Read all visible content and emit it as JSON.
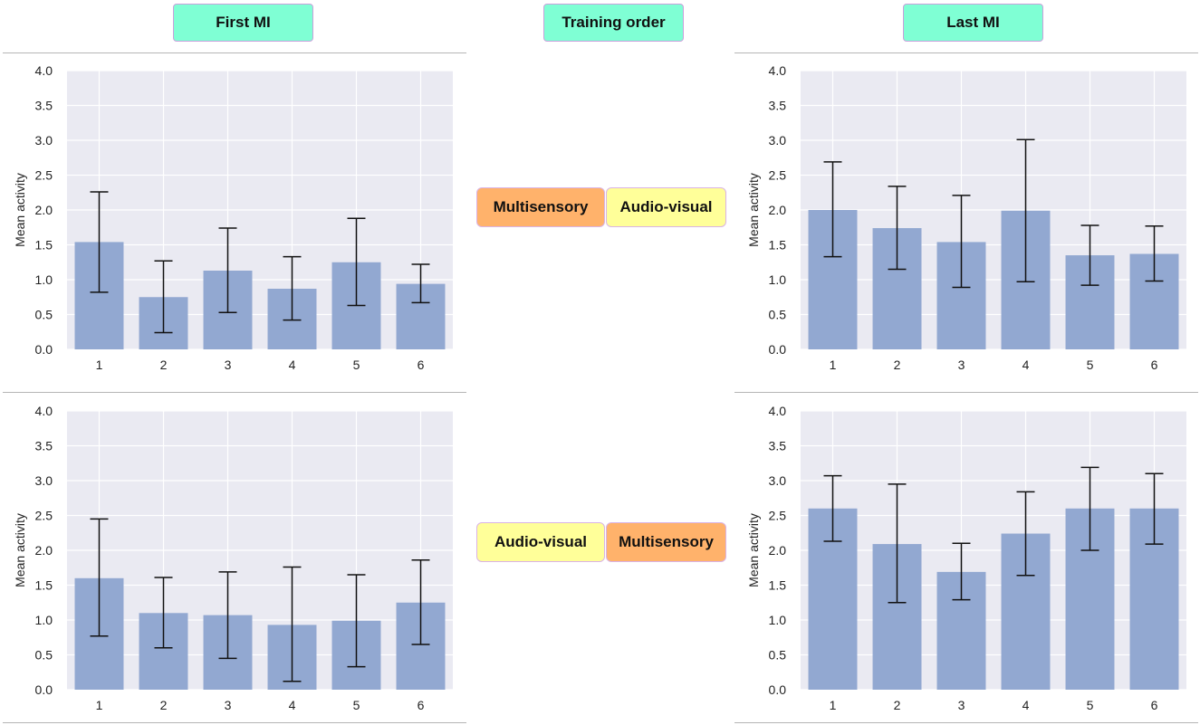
{
  "headers": {
    "left": "First MI",
    "middle": "Training order",
    "right": "Last MI"
  },
  "order_tags": {
    "top": [
      {
        "label": "Multisensory",
        "color": "#ffb26b"
      },
      {
        "label": "Audio-visual",
        "color": "#ffff99"
      }
    ],
    "bottom": [
      {
        "label": "Audio-visual",
        "color": "#ffff99"
      },
      {
        "label": "Multisensory",
        "color": "#ffb26b"
      }
    ]
  },
  "header_color": "#7fffd4",
  "bar_color": "#92a8d1",
  "plot_background": "#eaeaf2",
  "chart_data": [
    {
      "id": "first-mi-top",
      "type": "bar",
      "title": "",
      "xlabel": "",
      "ylabel": "Mean activity",
      "categories": [
        "1",
        "2",
        "3",
        "4",
        "5",
        "6"
      ],
      "values": [
        1.54,
        0.75,
        1.13,
        0.87,
        1.25,
        0.94
      ],
      "error_low": [
        0.82,
        0.24,
        0.53,
        0.42,
        0.63,
        0.67
      ],
      "error_high": [
        2.26,
        1.27,
        1.74,
        1.33,
        1.88,
        1.22
      ],
      "ylim": [
        0,
        4
      ],
      "yticks": [
        "0.0",
        "0.5",
        "1.0",
        "1.5",
        "2.0",
        "2.5",
        "3.0",
        "3.5",
        "4.0"
      ],
      "grid": true
    },
    {
      "id": "last-mi-top",
      "type": "bar",
      "title": "",
      "xlabel": "",
      "ylabel": "Mean activity",
      "categories": [
        "1",
        "2",
        "3",
        "4",
        "5",
        "6"
      ],
      "values": [
        2.0,
        1.74,
        1.54,
        1.99,
        1.35,
        1.37
      ],
      "error_low": [
        1.33,
        1.15,
        0.89,
        0.97,
        0.92,
        0.98
      ],
      "error_high": [
        2.69,
        2.34,
        2.21,
        3.01,
        1.78,
        1.77
      ],
      "ylim": [
        0,
        4
      ],
      "yticks": [
        "0.0",
        "0.5",
        "1.0",
        "1.5",
        "2.0",
        "2.5",
        "3.0",
        "3.5",
        "4.0"
      ],
      "grid": true
    },
    {
      "id": "first-mi-bottom",
      "type": "bar",
      "title": "",
      "xlabel": "",
      "ylabel": "Mean activity",
      "categories": [
        "1",
        "2",
        "3",
        "4",
        "5",
        "6"
      ],
      "values": [
        1.6,
        1.1,
        1.07,
        0.93,
        0.99,
        1.25
      ],
      "error_low": [
        0.77,
        0.6,
        0.45,
        0.12,
        0.33,
        0.65
      ],
      "error_high": [
        2.45,
        1.61,
        1.69,
        1.76,
        1.65,
        1.86
      ],
      "ylim": [
        0,
        4
      ],
      "yticks": [
        "0.0",
        "0.5",
        "1.0",
        "1.5",
        "2.0",
        "2.5",
        "3.0",
        "3.5",
        "4.0"
      ],
      "grid": true
    },
    {
      "id": "last-mi-bottom",
      "type": "bar",
      "title": "",
      "xlabel": "",
      "ylabel": "Mean activity",
      "categories": [
        "1",
        "2",
        "3",
        "4",
        "5",
        "6"
      ],
      "values": [
        2.6,
        2.09,
        1.69,
        2.24,
        2.6,
        2.6
      ],
      "error_low": [
        2.13,
        1.25,
        1.29,
        1.64,
        2.0,
        2.09
      ],
      "error_high": [
        3.07,
        2.95,
        2.1,
        2.84,
        3.19,
        3.1
      ],
      "ylim": [
        0,
        4
      ],
      "yticks": [
        "0.0",
        "0.5",
        "1.0",
        "1.5",
        "2.0",
        "2.5",
        "3.0",
        "3.5",
        "4.0"
      ],
      "grid": true
    }
  ]
}
